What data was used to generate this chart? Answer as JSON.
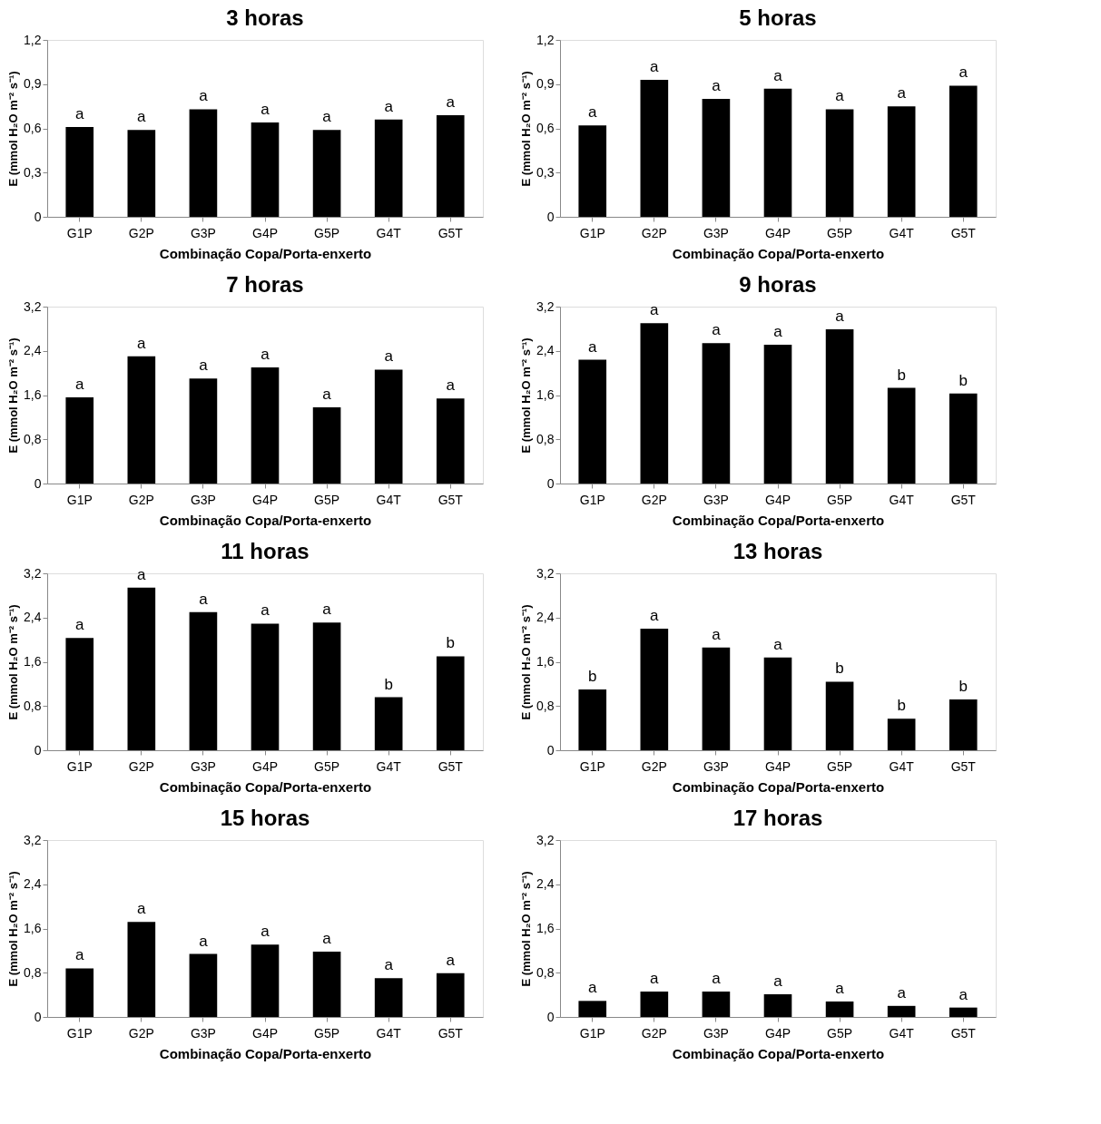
{
  "chart_data": [
    {
      "type": "bar",
      "title": "3 horas",
      "xlabel": "Combinação Copa/Porta-enxerto",
      "ylabel": "E (mmol H₂O m⁻² s⁻¹)",
      "categories": [
        "G1P",
        "G2P",
        "G3P",
        "G4P",
        "G5P",
        "G4T",
        "G5T"
      ],
      "values": [
        0.61,
        0.59,
        0.73,
        0.64,
        0.59,
        0.66,
        0.69
      ],
      "color": "#000000",
      "ylim": [
        0,
        1.2
      ],
      "yticks": [
        {
          "value": 0,
          "label": "0"
        },
        {
          "value": 0.3,
          "label": "0,3"
        },
        {
          "value": 0.6,
          "label": "0,6"
        },
        {
          "value": 0.9,
          "label": "0,9"
        },
        {
          "value": 1.2,
          "label": "1,2"
        }
      ],
      "grid": false,
      "annotations": [
        {
          "text": "a",
          "x": "G1P",
          "y": 0.61
        },
        {
          "text": "a",
          "x": "G2P",
          "y": 0.59
        },
        {
          "text": "a",
          "x": "G3P",
          "y": 0.73
        },
        {
          "text": "a",
          "x": "G4P",
          "y": 0.64
        },
        {
          "text": "a",
          "x": "G5P",
          "y": 0.59
        },
        {
          "text": "a",
          "x": "G4T",
          "y": 0.66
        },
        {
          "text": "a",
          "x": "G5T",
          "y": 0.69
        }
      ]
    },
    {
      "type": "bar",
      "title": "5 horas",
      "xlabel": "Combinação Copa/Porta-enxerto",
      "ylabel": "E (mmol H₂O m⁻² s⁻¹)",
      "categories": [
        "G1P",
        "G2P",
        "G3P",
        "G4P",
        "G5P",
        "G4T",
        "G5T"
      ],
      "values": [
        0.62,
        0.93,
        0.8,
        0.87,
        0.73,
        0.75,
        0.89
      ],
      "color": "#000000",
      "ylim": [
        0,
        1.2
      ],
      "yticks": [
        {
          "value": 0,
          "label": "0"
        },
        {
          "value": 0.3,
          "label": "0,3"
        },
        {
          "value": 0.6,
          "label": "0,6"
        },
        {
          "value": 0.9,
          "label": "0,9"
        },
        {
          "value": 1.2,
          "label": "1,2"
        }
      ],
      "grid": false,
      "annotations": [
        {
          "text": "a",
          "x": "G1P",
          "y": 0.62
        },
        {
          "text": "a",
          "x": "G2P",
          "y": 0.93
        },
        {
          "text": "a",
          "x": "G3P",
          "y": 0.8
        },
        {
          "text": "a",
          "x": "G4P",
          "y": 0.87
        },
        {
          "text": "a",
          "x": "G5P",
          "y": 0.73
        },
        {
          "text": "a",
          "x": "G4T",
          "y": 0.75
        },
        {
          "text": "a",
          "x": "G5T",
          "y": 0.89
        }
      ]
    },
    {
      "type": "bar",
      "title": "7 horas",
      "xlabel": "Combinação Copa/Porta-enxerto",
      "ylabel": "E (mmol H₂O m⁻² s⁻¹)",
      "categories": [
        "G1P",
        "G2P",
        "G3P",
        "G4P",
        "G5P",
        "G4T",
        "G5T"
      ],
      "values": [
        1.56,
        2.3,
        1.9,
        2.1,
        1.38,
        2.06,
        1.54
      ],
      "color": "#000000",
      "ylim": [
        0,
        3.2
      ],
      "yticks": [
        {
          "value": 0,
          "label": "0"
        },
        {
          "value": 0.8,
          "label": "0,8"
        },
        {
          "value": 1.6,
          "label": "1,6"
        },
        {
          "value": 2.4,
          "label": "2,4"
        },
        {
          "value": 3.2,
          "label": "3,2"
        }
      ],
      "grid": false,
      "annotations": [
        {
          "text": "a",
          "x": "G1P",
          "y": 1.56
        },
        {
          "text": "a",
          "x": "G2P",
          "y": 2.3
        },
        {
          "text": "a",
          "x": "G3P",
          "y": 1.9
        },
        {
          "text": "a",
          "x": "G4P",
          "y": 2.1
        },
        {
          "text": "a",
          "x": "G5P",
          "y": 1.38
        },
        {
          "text": "a",
          "x": "G4T",
          "y": 2.06
        },
        {
          "text": "a",
          "x": "G5T",
          "y": 1.54
        }
      ]
    },
    {
      "type": "bar",
      "title": "9 horas",
      "xlabel": "Combinação Copa/Porta-enxerto",
      "ylabel": "E (mmol H₂O m⁻² s⁻¹)",
      "categories": [
        "G1P",
        "G2P",
        "G3P",
        "G4P",
        "G5P",
        "G4T",
        "G5T"
      ],
      "values": [
        2.24,
        2.9,
        2.54,
        2.51,
        2.79,
        1.73,
        1.63
      ],
      "color": "#000000",
      "ylim": [
        0,
        3.2
      ],
      "yticks": [
        {
          "value": 0,
          "label": "0"
        },
        {
          "value": 0.8,
          "label": "0,8"
        },
        {
          "value": 1.6,
          "label": "1,6"
        },
        {
          "value": 2.4,
          "label": "2,4"
        },
        {
          "value": 3.2,
          "label": "3,2"
        }
      ],
      "grid": false,
      "annotations": [
        {
          "text": "a",
          "x": "G1P",
          "y": 2.24
        },
        {
          "text": "a",
          "x": "G2P",
          "y": 2.9
        },
        {
          "text": "a",
          "x": "G3P",
          "y": 2.54
        },
        {
          "text": "a",
          "x": "G4P",
          "y": 2.51
        },
        {
          "text": "a",
          "x": "G5P",
          "y": 2.79
        },
        {
          "text": "b",
          "x": "G4T",
          "y": 1.73
        },
        {
          "text": "b",
          "x": "G5T",
          "y": 1.63
        }
      ]
    },
    {
      "type": "bar",
      "title": "11 horas",
      "xlabel": "Combinação Copa/Porta-enxerto",
      "ylabel": "E (mmol H₂O m⁻² s⁻¹)",
      "categories": [
        "G1P",
        "G2P",
        "G3P",
        "G4P",
        "G5P",
        "G4T",
        "G5T"
      ],
      "values": [
        2.03,
        2.94,
        2.5,
        2.29,
        2.31,
        0.96,
        1.7
      ],
      "color": "#000000",
      "ylim": [
        0,
        3.2
      ],
      "yticks": [
        {
          "value": 0,
          "label": "0"
        },
        {
          "value": 0.8,
          "label": "0,8"
        },
        {
          "value": 1.6,
          "label": "1,6"
        },
        {
          "value": 2.4,
          "label": "2,4"
        },
        {
          "value": 3.2,
          "label": "3,2"
        }
      ],
      "grid": false,
      "annotations": [
        {
          "text": "a",
          "x": "G1P",
          "y": 2.03
        },
        {
          "text": "a",
          "x": "G2P",
          "y": 2.94
        },
        {
          "text": "a",
          "x": "G3P",
          "y": 2.5
        },
        {
          "text": "a",
          "x": "G4P",
          "y": 2.29
        },
        {
          "text": "a",
          "x": "G5P",
          "y": 2.31
        },
        {
          "text": "b",
          "x": "G4T",
          "y": 0.96
        },
        {
          "text": "b",
          "x": "G5T",
          "y": 1.7
        }
      ]
    },
    {
      "type": "bar",
      "title": "13 horas",
      "xlabel": "Combinação Copa/Porta-enxerto",
      "ylabel": "E (mmol H₂O m⁻² s⁻¹)",
      "categories": [
        "G1P",
        "G2P",
        "G3P",
        "G4P",
        "G5P",
        "G4T",
        "G5T"
      ],
      "values": [
        1.1,
        2.2,
        1.86,
        1.68,
        1.24,
        0.57,
        0.92
      ],
      "color": "#000000",
      "ylim": [
        0,
        3.2
      ],
      "yticks": [
        {
          "value": 0,
          "label": "0"
        },
        {
          "value": 0.8,
          "label": "0,8"
        },
        {
          "value": 1.6,
          "label": "1,6"
        },
        {
          "value": 2.4,
          "label": "2,4"
        },
        {
          "value": 3.2,
          "label": "3,2"
        }
      ],
      "grid": false,
      "annotations": [
        {
          "text": "b",
          "x": "G1P",
          "y": 1.1
        },
        {
          "text": "a",
          "x": "G2P",
          "y": 2.2
        },
        {
          "text": "a",
          "x": "G3P",
          "y": 1.86
        },
        {
          "text": "a",
          "x": "G4P",
          "y": 1.68
        },
        {
          "text": "b",
          "x": "G5P",
          "y": 1.24
        },
        {
          "text": "b",
          "x": "G4T",
          "y": 0.57
        },
        {
          "text": "b",
          "x": "G5T",
          "y": 0.92
        }
      ]
    },
    {
      "type": "bar",
      "title": "15 horas",
      "xlabel": "Combinação Copa/Porta-enxerto",
      "ylabel": "E (mmol H₂O m⁻² s⁻¹)",
      "categories": [
        "G1P",
        "G2P",
        "G3P",
        "G4P",
        "G5P",
        "G4T",
        "G5T"
      ],
      "values": [
        0.88,
        1.72,
        1.14,
        1.31,
        1.18,
        0.7,
        0.79
      ],
      "color": "#000000",
      "ylim": [
        0,
        3.2
      ],
      "yticks": [
        {
          "value": 0,
          "label": "0"
        },
        {
          "value": 0.8,
          "label": "0,8"
        },
        {
          "value": 1.6,
          "label": "1,6"
        },
        {
          "value": 2.4,
          "label": "2,4"
        },
        {
          "value": 3.2,
          "label": "3,2"
        }
      ],
      "grid": false,
      "annotations": [
        {
          "text": "a",
          "x": "G1P",
          "y": 0.88
        },
        {
          "text": "a",
          "x": "G2P",
          "y": 1.72
        },
        {
          "text": "a",
          "x": "G3P",
          "y": 1.14
        },
        {
          "text": "a",
          "x": "G4P",
          "y": 1.31
        },
        {
          "text": "a",
          "x": "G5P",
          "y": 1.18
        },
        {
          "text": "a",
          "x": "G4T",
          "y": 0.7
        },
        {
          "text": "a",
          "x": "G5T",
          "y": 0.79
        }
      ]
    },
    {
      "type": "bar",
      "title": "17 horas",
      "xlabel": "Combinação Copa/Porta-enxerto",
      "ylabel": "E (mmol H₂O m⁻² s⁻¹)",
      "categories": [
        "G1P",
        "G2P",
        "G3P",
        "G4P",
        "G5P",
        "G4T",
        "G5T"
      ],
      "values": [
        0.29,
        0.46,
        0.46,
        0.41,
        0.28,
        0.2,
        0.17
      ],
      "color": "#000000",
      "ylim": [
        0,
        3.2
      ],
      "yticks": [
        {
          "value": 0,
          "label": "0"
        },
        {
          "value": 0.8,
          "label": "0,8"
        },
        {
          "value": 1.6,
          "label": "1,6"
        },
        {
          "value": 2.4,
          "label": "2,4"
        },
        {
          "value": 3.2,
          "label": "3,2"
        }
      ],
      "grid": false,
      "annotations": [
        {
          "text": "a",
          "x": "G1P",
          "y": 0.29
        },
        {
          "text": "a",
          "x": "G2P",
          "y": 0.46
        },
        {
          "text": "a",
          "x": "G3P",
          "y": 0.46
        },
        {
          "text": "a",
          "x": "G4P",
          "y": 0.41
        },
        {
          "text": "a",
          "x": "G5P",
          "y": 0.28
        },
        {
          "text": "a",
          "x": "G4T",
          "y": 0.2
        },
        {
          "text": "a",
          "x": "G5T",
          "y": 0.17
        }
      ]
    }
  ]
}
